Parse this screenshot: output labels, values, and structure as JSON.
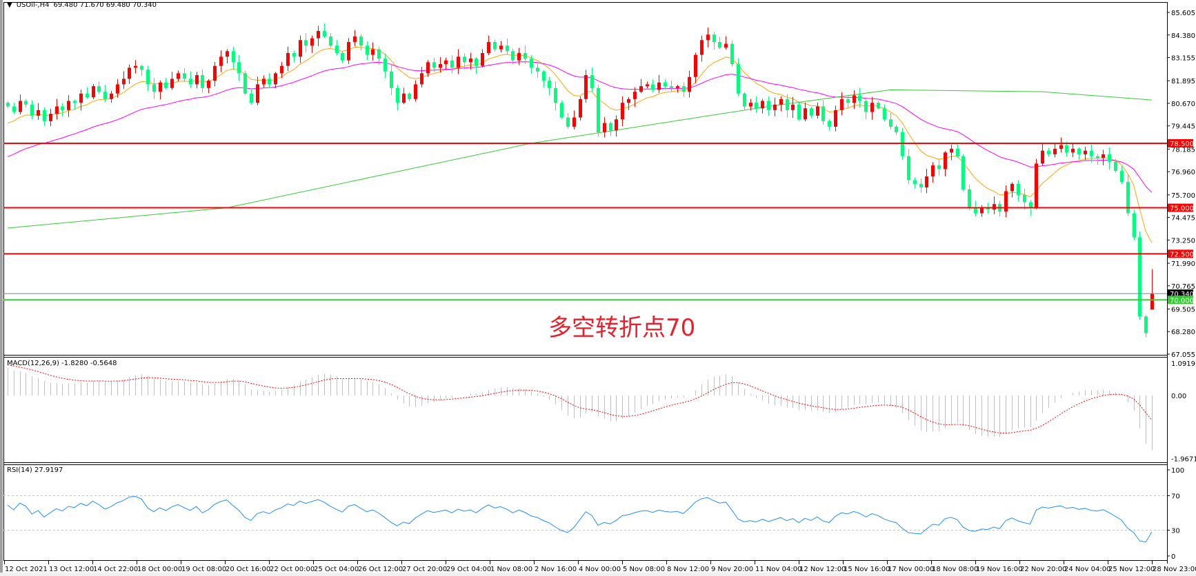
{
  "header": {
    "symbol": "USOil-,H4",
    "ohlc": "69.480 71.670 69.480 70.340"
  },
  "annotation": "多空转折点70",
  "chart_data": {
    "type": "candlestick",
    "up_color": "#ff0000",
    "down_color": "#00ff7f",
    "closes": [
      80.5,
      80.2,
      80.8,
      80.6,
      80.0,
      80.3,
      79.7,
      80.1,
      80.5,
      80.3,
      80.8,
      80.7,
      81.2,
      81.0,
      81.6,
      81.3,
      80.9,
      81.2,
      81.7,
      82.0,
      82.6,
      82.7,
      82.5,
      81.7,
      81.3,
      81.8,
      81.5,
      82.0,
      82.3,
      82.0,
      81.7,
      82.2,
      81.5,
      81.9,
      82.7,
      83.2,
      83.5,
      82.9,
      82.3,
      81.2,
      80.7,
      81.7,
      82.0,
      81.7,
      82.3,
      82.7,
      83.4,
      83.2,
      84.1,
      83.8,
      84.2,
      84.6,
      84.3,
      83.8,
      83.4,
      83.0,
      84.0,
      84.3,
      83.8,
      83.3,
      83.6,
      83.1,
      82.4,
      81.5,
      80.7,
      81.2,
      80.9,
      81.7,
      82.3,
      82.9,
      82.6,
      82.8,
      83.0,
      82.6,
      83.2,
      82.9,
      83.1,
      82.7,
      83.4,
      84.0,
      83.6,
      83.8,
      83.5,
      83.0,
      83.4,
      83.1,
      82.6,
      82.4,
      81.9,
      81.5,
      80.7,
      79.9,
      79.4,
      79.9,
      80.9,
      82.2,
      81.5,
      79.1,
      79.6,
      79.2,
      79.8,
      80.7,
      80.9,
      81.3,
      81.6,
      81.7,
      81.4,
      81.8,
      81.6,
      81.5,
      81.6,
      81.3,
      82.1,
      83.3,
      84.1,
      84.4,
      84.0,
      83.7,
      83.9,
      82.8,
      81.2,
      80.5,
      80.7,
      80.4,
      80.8,
      80.3,
      80.6,
      80.9,
      80.3,
      80.6,
      79.8,
      80.4,
      80.0,
      80.5,
      79.7,
      79.4,
      80.3,
      80.9,
      80.7,
      81.1,
      80.8,
      80.2,
      80.7,
      80.4,
      79.8,
      79.4,
      79.1,
      77.8,
      76.5,
      76.3,
      76.1,
      76.7,
      77.3,
      77.1,
      78.0,
      78.2,
      77.8,
      76.0,
      75.0,
      74.7,
      75.0,
      74.9,
      75.2,
      74.8,
      75.9,
      76.3,
      75.7,
      75.3,
      75.0,
      77.4,
      78.1,
      77.9,
      78.2,
      78.4,
      78.0,
      78.2,
      77.9,
      78.1,
      77.8,
      77.7,
      77.9,
      77.5,
      77.0,
      76.4,
      74.7,
      73.4,
      69.1,
      68.2,
      70.34
    ],
    "last_bar": {
      "open": 69.48,
      "high": 71.67,
      "low": 69.48,
      "close": 70.34
    },
    "price_axis": {
      "range": [
        67.055,
        85.605
      ],
      "ticks": [
        "85.605",
        "84.380",
        "83.155",
        "81.895",
        "80.670",
        "79.445",
        "78.185",
        "76.960",
        "75.700",
        "74.475",
        "73.250",
        "71.990",
        "70.765",
        "69.505",
        "68.280",
        "67.055"
      ]
    },
    "time_axis": {
      "ticks": [
        "12 Oct 2021",
        "13 Oct 12:00",
        "14 Oct 22:00",
        "18 Oct 00:00",
        "19 Oct 08:00",
        "20 Oct 16:00",
        "22 Oct 00:00",
        "25 Oct 04:00",
        "26 Oct 12:00",
        "27 Oct 20:00",
        "29 Oct 04:00",
        "1 Nov 08:00",
        "2 Nov 16:00",
        "4 Nov 00:00",
        "5 Nov 08:00",
        "8 Nov 12:00",
        "9 Nov 20:00",
        "11 Nov 04:00",
        "12 Nov 12:00",
        "15 Nov 16:00",
        "17 Nov 00:00",
        "18 Nov 08:00",
        "19 Nov 16:00",
        "22 Nov 20:00",
        "24 Nov 04:00",
        "25 Nov 12:00",
        "28 Nov 23:00"
      ]
    },
    "horizontal_lines": [
      {
        "price": 78.5,
        "label": "78.500",
        "color": "#ff0000"
      },
      {
        "price": 75.0,
        "label": "75.000",
        "color": "#ff0000"
      },
      {
        "price": 72.5,
        "label": "72.500",
        "color": "#ff0000"
      },
      {
        "price": 70.0,
        "label": "70.000",
        "color": "#32cd32"
      }
    ],
    "current_price": {
      "price": 70.34,
      "label": "70.340",
      "color": "#708090"
    },
    "moving_averages": [
      {
        "color": "#ffa500",
        "start": 79.4
      },
      {
        "color": "#ff00ff",
        "start": 77.6
      },
      {
        "color": "#32cd32",
        "points": [
          [
            0,
            73.9
          ],
          [
            36,
            75.0
          ],
          [
            86,
            78.5
          ],
          [
            125,
            80.5
          ],
          [
            145,
            81.4
          ],
          [
            170,
            81.3
          ],
          [
            188,
            80.85
          ]
        ]
      }
    ],
    "macd": {
      "label": "MACD(12,26,9) -1.8280 -0.5648",
      "main": -1.828,
      "signal": -0.5648,
      "range": [
        -1.9671,
        1.0919
      ],
      "ticks": [
        "1.0919",
        "0.00",
        "-1.9671"
      ],
      "start": 0.93,
      "histogram_color": "#c0c0c0",
      "signal_color": "#ff0000"
    },
    "rsi": {
      "label": "RSI(14) 27.9197",
      "value": 27.9197,
      "range": [
        0,
        100
      ],
      "ticks": [
        "100",
        "70",
        "30",
        "0"
      ],
      "levels": [
        70,
        30
      ],
      "color": "#1e90ff"
    }
  }
}
